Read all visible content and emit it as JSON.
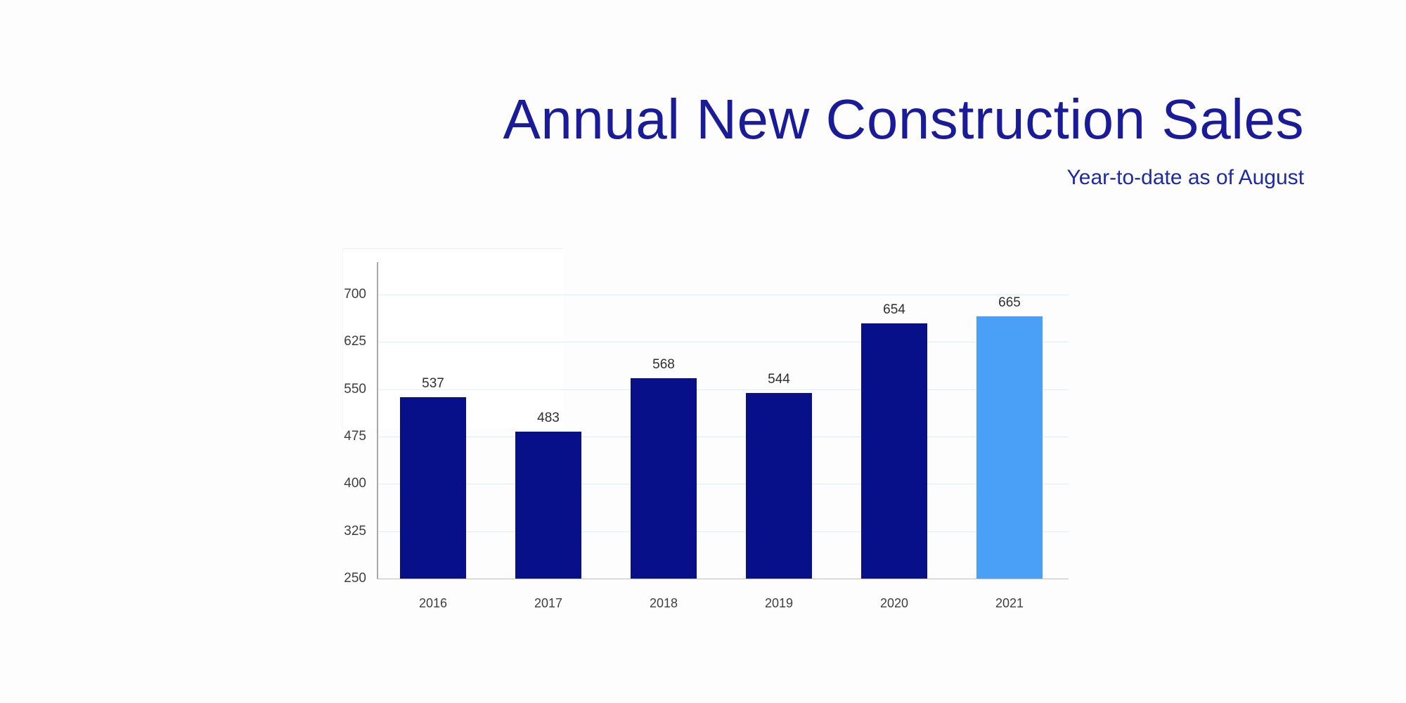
{
  "header": {
    "title": "Annual New Construction Sales",
    "subtitle": "Year-to-date as of August",
    "title_color": "#1a1b99",
    "subtitle_color": "#1d2aa0"
  },
  "chart_data": {
    "type": "bar",
    "title": "Annual New Construction Sales",
    "subtitle": "Year-to-date as of August",
    "categories": [
      "2016",
      "2017",
      "2018",
      "2019",
      "2020",
      "2021"
    ],
    "values": [
      537,
      483,
      568,
      544,
      654,
      665
    ],
    "highlight_index": 5,
    "yticks": [
      250,
      325,
      400,
      475,
      550,
      625,
      700
    ],
    "ylim": [
      250,
      700
    ],
    "grid": true,
    "legend": false,
    "xlabel": "",
    "ylabel": "",
    "bar_color": "#081089",
    "highlight_color": "#4aa0f7",
    "gridline_color": "#e2ecf3",
    "axis_color": "#a8a8a8",
    "baseline_color": "#bdbdbd",
    "value_label_color": "#2e2e2e",
    "tick_label_color": "#3d3d3d",
    "xtick_label_color": "#3e3e3e"
  }
}
